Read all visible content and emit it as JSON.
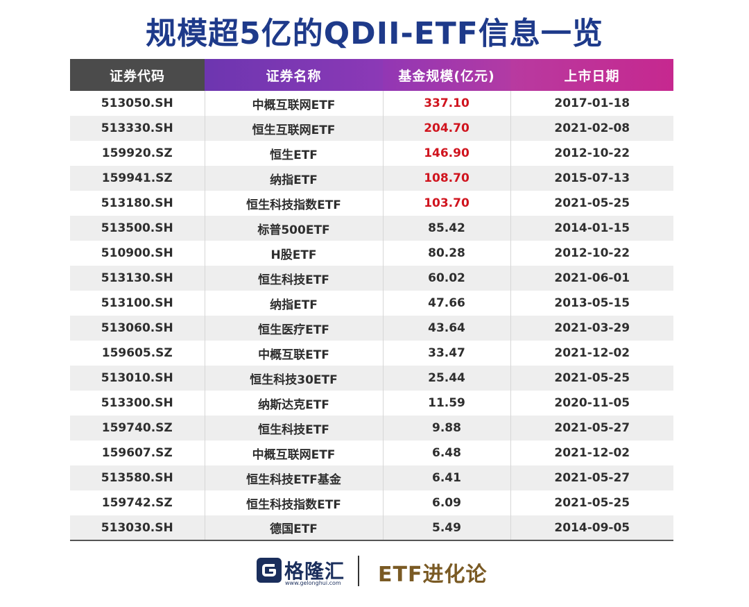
{
  "title": "规模超5亿的QDII-ETF信息一览",
  "table": {
    "headers": [
      "证券代码",
      "证券名称",
      "基金规模(亿元)",
      "上市日期"
    ],
    "highlight_color": "#d0141e",
    "rows": [
      {
        "code": "513050.SH",
        "name": "中概互联网ETF",
        "size": "337.10",
        "date": "2017-01-18",
        "highlight": true
      },
      {
        "code": "513330.SH",
        "name": "恒生互联网ETF",
        "size": "204.70",
        "date": "2021-02-08",
        "highlight": true
      },
      {
        "code": "159920.SZ",
        "name": "恒生ETF",
        "size": "146.90",
        "date": "2012-10-22",
        "highlight": true
      },
      {
        "code": "159941.SZ",
        "name": "纳指ETF",
        "size": "108.70",
        "date": "2015-07-13",
        "highlight": true
      },
      {
        "code": "513180.SH",
        "name": "恒生科技指数ETF",
        "size": "103.70",
        "date": "2021-05-25",
        "highlight": true
      },
      {
        "code": "513500.SH",
        "name": "标普500ETF",
        "size": "85.42",
        "date": "2014-01-15",
        "highlight": false
      },
      {
        "code": "510900.SH",
        "name": "H股ETF",
        "size": "80.28",
        "date": "2012-10-22",
        "highlight": false
      },
      {
        "code": "513130.SH",
        "name": "恒生科技ETF",
        "size": "60.02",
        "date": "2021-06-01",
        "highlight": false
      },
      {
        "code": "513100.SH",
        "name": "纳指ETF",
        "size": "47.66",
        "date": "2013-05-15",
        "highlight": false
      },
      {
        "code": "513060.SH",
        "name": "恒生医疗ETF",
        "size": "43.64",
        "date": "2021-03-29",
        "highlight": false
      },
      {
        "code": "159605.SZ",
        "name": "中概互联ETF",
        "size": "33.47",
        "date": "2021-12-02",
        "highlight": false
      },
      {
        "code": "513010.SH",
        "name": "恒生科技30ETF",
        "size": "25.44",
        "date": "2021-05-25",
        "highlight": false
      },
      {
        "code": "513300.SH",
        "name": "纳斯达克ETF",
        "size": "11.59",
        "date": "2020-11-05",
        "highlight": false
      },
      {
        "code": "159740.SZ",
        "name": "恒生科技ETF",
        "size": "9.88",
        "date": "2021-05-27",
        "highlight": false
      },
      {
        "code": "159607.SZ",
        "name": "中概互联网ETF",
        "size": "6.48",
        "date": "2021-12-02",
        "highlight": false
      },
      {
        "code": "513580.SH",
        "name": "恒生科技ETF基金",
        "size": "6.41",
        "date": "2021-05-27",
        "highlight": false
      },
      {
        "code": "159742.SZ",
        "name": "恒生科技指数ETF",
        "size": "6.09",
        "date": "2021-05-25",
        "highlight": false
      },
      {
        "code": "513030.SH",
        "name": "德国ETF",
        "size": "5.49",
        "date": "2014-09-05",
        "highlight": false
      }
    ]
  },
  "footer": {
    "logo_icon": "g-logo-icon",
    "logo_text": "格隆汇",
    "logo_url": "www.gelonghui.com",
    "brand": "ETF进化论"
  }
}
